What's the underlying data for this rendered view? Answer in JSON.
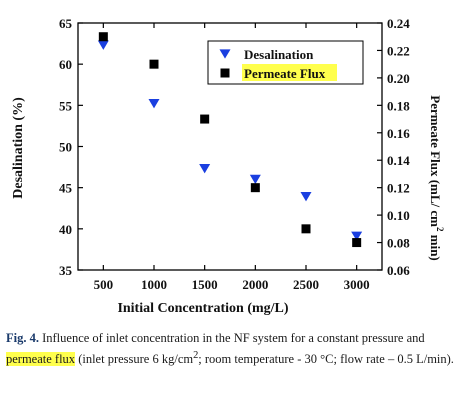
{
  "chart_data": {
    "type": "scatter",
    "xlabel_parts": [
      "Initial ",
      "Concentration",
      " (mg/L)"
    ],
    "ylabel_left": "Desalination (%)",
    "ylabel_right_parts": [
      "Permeate Flux",
      " (mL/ cm",
      "2",
      " min)"
    ],
    "x_ticks": [
      500,
      1000,
      1500,
      2000,
      2500,
      3000
    ],
    "xlim": [
      250,
      3250
    ],
    "y_left_ticks": [
      35,
      40,
      45,
      50,
      55,
      60,
      65
    ],
    "y_left_lim": [
      35,
      65
    ],
    "y_right_ticks": [
      "0.06",
      "0.08",
      "0.10",
      "0.12",
      "0.14",
      "0.16",
      "0.18",
      "0.20",
      "0.22",
      "0.24"
    ],
    "y_right_lim": [
      0.06,
      0.24
    ],
    "legend_position": "top-right",
    "series": [
      {
        "name": "Desalination",
        "axis": "left",
        "marker": "triangle-down",
        "color": "#1a3fe0",
        "x": [
          500,
          1000,
          1500,
          2000,
          2500,
          3000
        ],
        "y": [
          62.3,
          55.2,
          47.3,
          46.0,
          43.9,
          39.1
        ]
      },
      {
        "name": "Permeate Flux",
        "axis": "right",
        "marker": "square",
        "color": "#000000",
        "highlight": "#ffff4d",
        "x": [
          500,
          1000,
          1500,
          2000,
          2500,
          3000
        ],
        "y": [
          0.23,
          0.21,
          0.17,
          0.12,
          0.09,
          0.08
        ]
      }
    ]
  },
  "caption": {
    "fig_label": "Fig. 4.",
    "text_1": "  Influence of inlet concentration in the NF system for a constant pressure and ",
    "highlight": "permeate flux",
    "text_2a": " (inlet pressure 6 kg/cm",
    "sup": "2",
    "text_2b": "; room temperature - 30 °C; flow rate – 0.5 L/min)."
  }
}
